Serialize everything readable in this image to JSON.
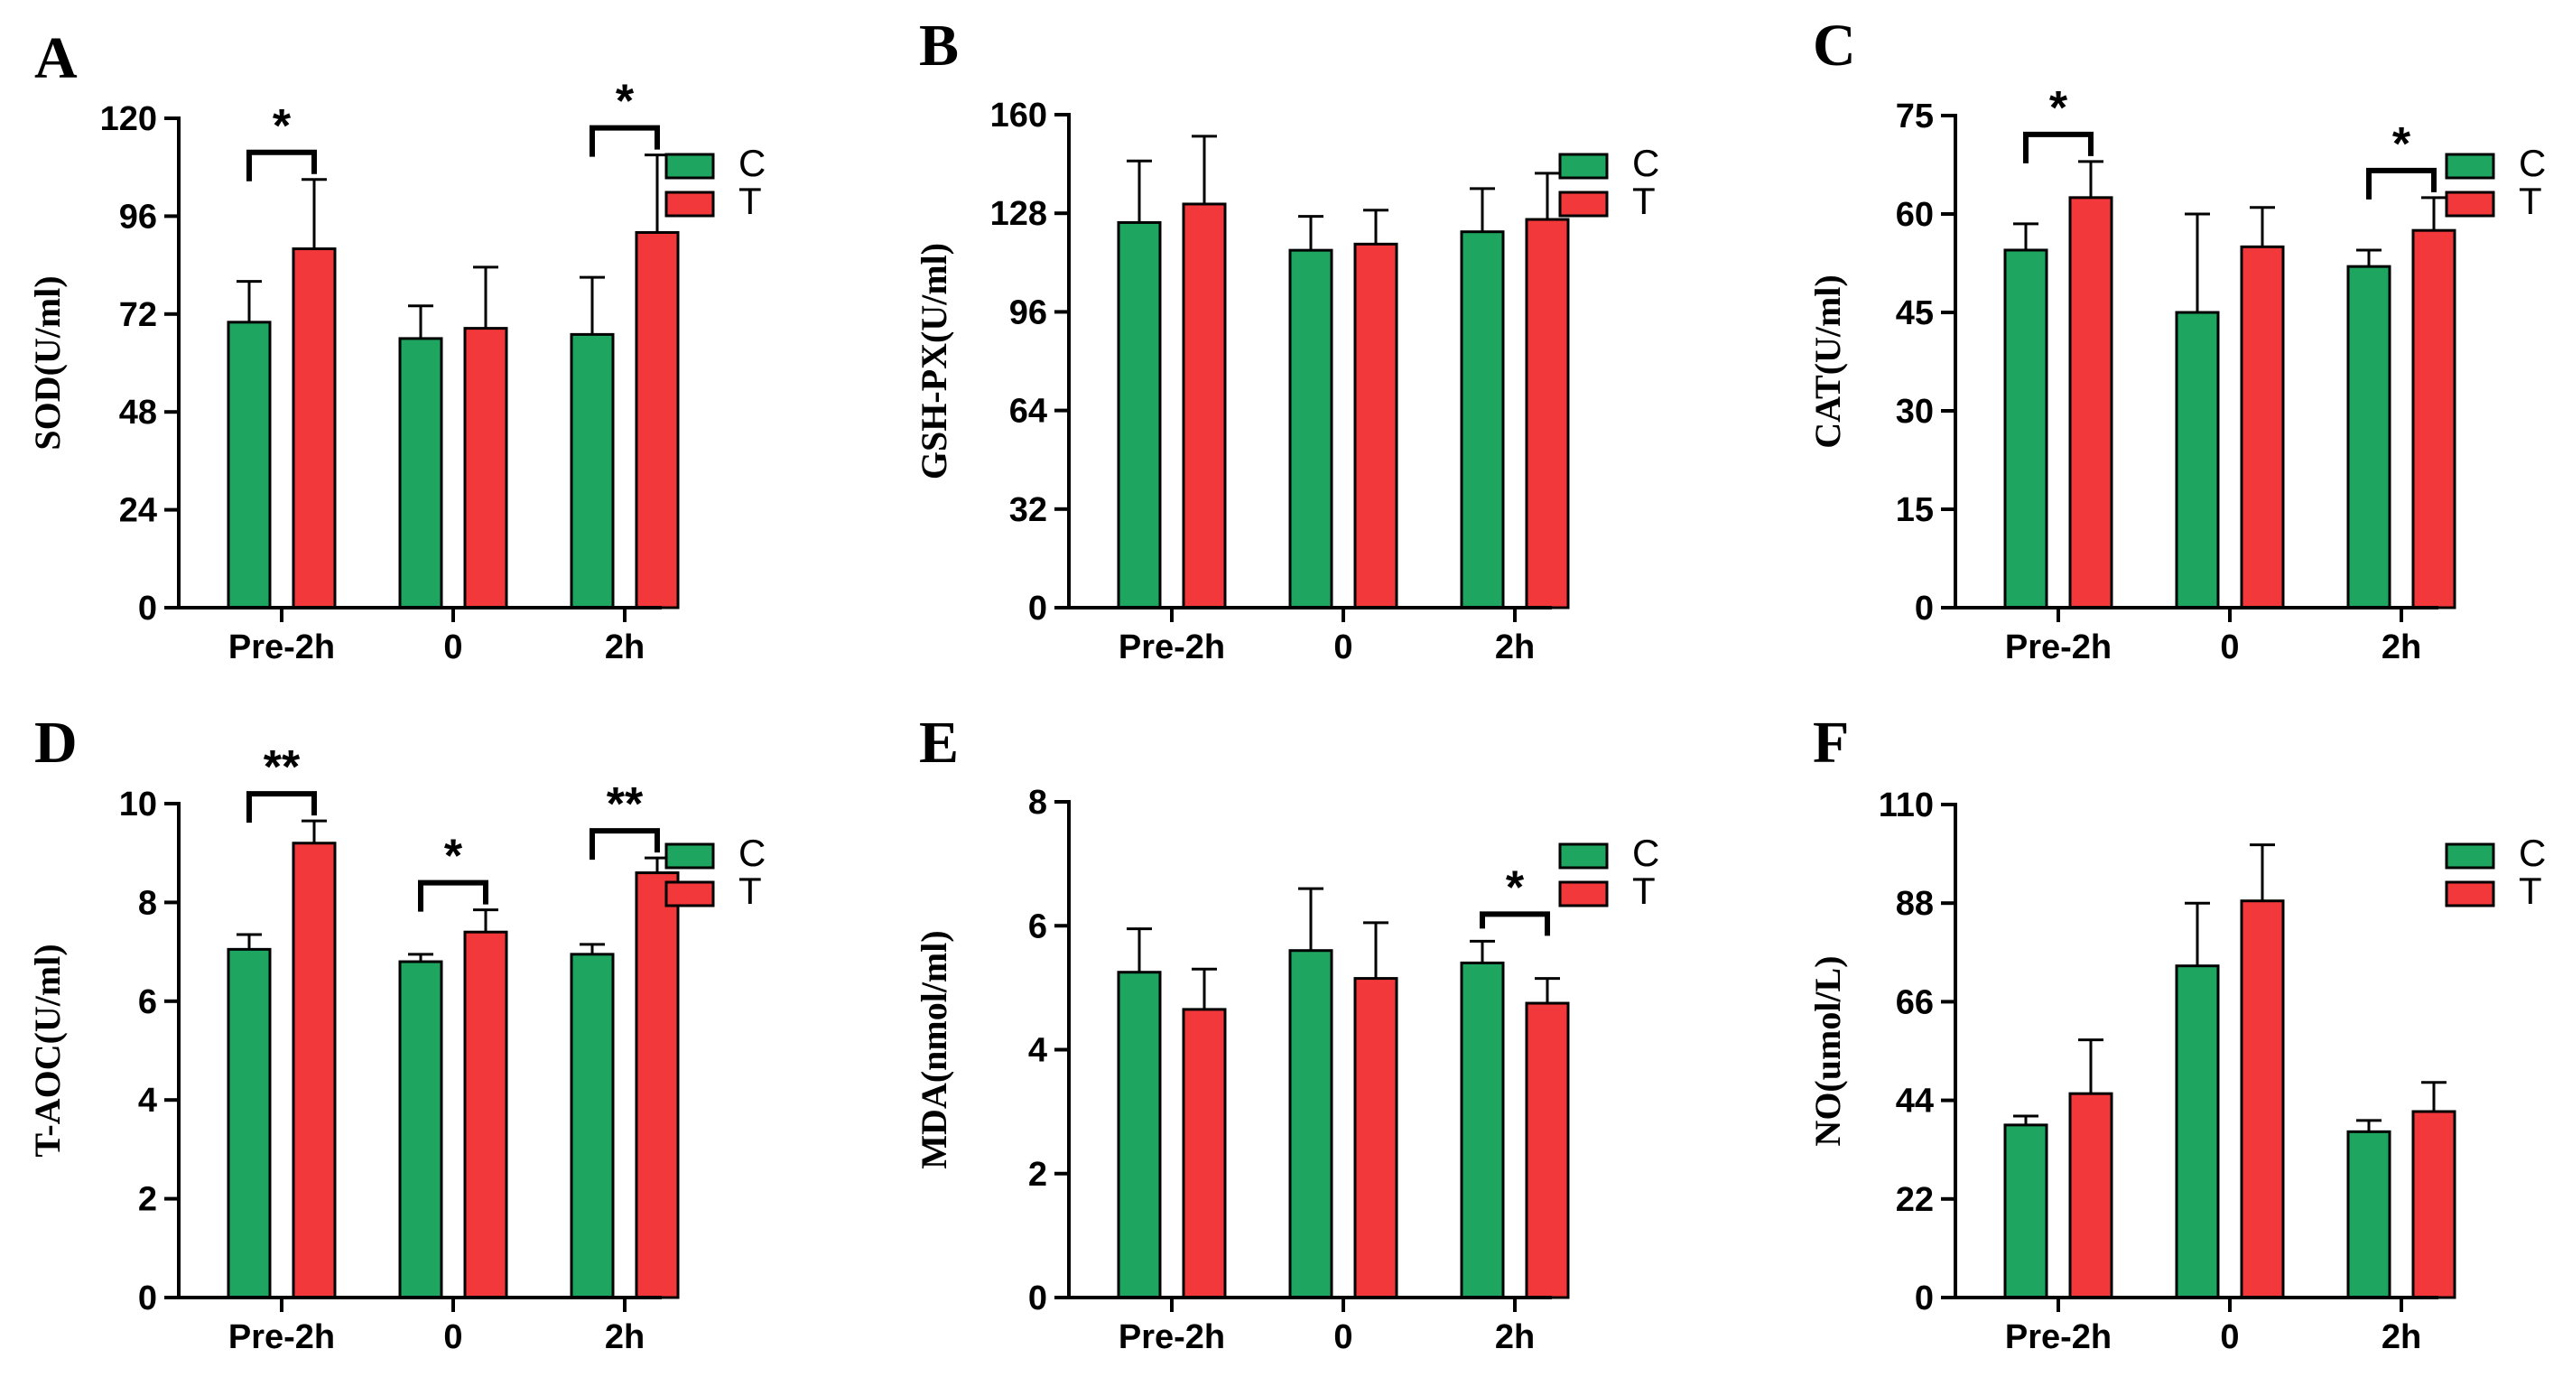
{
  "colors": {
    "C": "#1ea560",
    "T": "#f2383a",
    "axis": "#000000"
  },
  "chart_data": [
    {
      "type": "bar",
      "panel": "A",
      "ylabel": "SOD(U/ml)",
      "categories": [
        "Pre-2h",
        "0",
        "2h"
      ],
      "ylim": [
        0,
        120
      ],
      "yticks": [
        "0",
        "24",
        "48",
        "72",
        "96",
        "120"
      ],
      "legend": [
        "C",
        "T"
      ],
      "legend_position": "top-right",
      "series": [
        {
          "name": "C",
          "values": [
            70,
            66,
            67
          ],
          "errors": [
            10,
            8,
            14
          ]
        },
        {
          "name": "T",
          "values": [
            88,
            68.5,
            92
          ],
          "errors": [
            17,
            15,
            19
          ]
        }
      ],
      "significance": [
        {
          "category": "Pre-2h",
          "label": "*"
        },
        {
          "category": "2h",
          "label": "*"
        }
      ]
    },
    {
      "type": "bar",
      "panel": "B",
      "ylabel": "GSH-PX(U/ml)",
      "categories": [
        "Pre-2h",
        "0",
        "2h"
      ],
      "ylim": [
        0,
        160
      ],
      "yticks": [
        "0",
        "32",
        "64",
        "96",
        "128",
        "160"
      ],
      "legend": [
        "C",
        "T"
      ],
      "legend_position": "top-right",
      "series": [
        {
          "name": "C",
          "values": [
            125,
            116,
            122
          ],
          "errors": [
            20,
            11,
            14
          ]
        },
        {
          "name": "T",
          "values": [
            131,
            118,
            126
          ],
          "errors": [
            22,
            11,
            15
          ]
        }
      ],
      "significance": []
    },
    {
      "type": "bar",
      "panel": "C",
      "ylabel": "CAT(U/ml)",
      "categories": [
        "Pre-2h",
        "0",
        "2h"
      ],
      "ylim": [
        0,
        75
      ],
      "yticks": [
        "0",
        "15",
        "30",
        "45",
        "60",
        "75"
      ],
      "legend": [
        "C",
        "T"
      ],
      "legend_position": "top-right",
      "series": [
        {
          "name": "C",
          "values": [
            54.5,
            45,
            52
          ],
          "errors": [
            4,
            15,
            2.5
          ]
        },
        {
          "name": "T",
          "values": [
            62.5,
            55,
            57.5
          ],
          "errors": [
            5.5,
            6,
            5
          ]
        }
      ],
      "significance": [
        {
          "category": "Pre-2h",
          "label": "*"
        },
        {
          "category": "2h",
          "label": "*"
        }
      ]
    },
    {
      "type": "bar",
      "panel": "D",
      "ylabel": "T-AOC(U/ml)",
      "categories": [
        "Pre-2h",
        "0",
        "2h"
      ],
      "ylim": [
        0,
        10
      ],
      "yticks": [
        "0",
        "2",
        "4",
        "6",
        "8",
        "10"
      ],
      "legend": [
        "C",
        "T"
      ],
      "legend_position": "top-right",
      "series": [
        {
          "name": "C",
          "values": [
            7.05,
            6.8,
            6.95
          ],
          "errors": [
            0.3,
            0.15,
            0.2
          ]
        },
        {
          "name": "T",
          "values": [
            9.2,
            7.4,
            8.6
          ],
          "errors": [
            0.45,
            0.45,
            0.3
          ]
        }
      ],
      "significance": [
        {
          "category": "Pre-2h",
          "label": "**"
        },
        {
          "category": "0",
          "label": "*"
        },
        {
          "category": "2h",
          "label": "**"
        }
      ]
    },
    {
      "type": "bar",
      "panel": "E",
      "ylabel": "MDA(nmol/ml)",
      "categories": [
        "Pre-2h",
        "0",
        "2h"
      ],
      "ylim": [
        0,
        8
      ],
      "yticks": [
        "0",
        "2",
        "4",
        "6",
        "8"
      ],
      "legend": [
        "C",
        "T"
      ],
      "legend_position": "top-right",
      "series": [
        {
          "name": "C",
          "values": [
            5.25,
            5.6,
            5.4
          ],
          "errors": [
            0.7,
            1.0,
            0.35
          ]
        },
        {
          "name": "T",
          "values": [
            4.65,
            5.15,
            4.75
          ],
          "errors": [
            0.65,
            0.9,
            0.4
          ]
        }
      ],
      "significance": [
        {
          "category": "2h",
          "label": "*"
        }
      ]
    },
    {
      "type": "bar",
      "panel": "F",
      "ylabel": "NO(umol/L)",
      "categories": [
        "Pre-2h",
        "0",
        "2h"
      ],
      "ylim": [
        0,
        110
      ],
      "yticks": [
        "0",
        "22",
        "44",
        "66",
        "88",
        "110"
      ],
      "legend": [
        "C",
        "T"
      ],
      "legend_position": "top-right",
      "series": [
        {
          "name": "C",
          "values": [
            38.5,
            74,
            37
          ],
          "errors": [
            2,
            14,
            2.5
          ]
        },
        {
          "name": "T",
          "values": [
            45.5,
            88.5,
            41.5
          ],
          "errors": [
            12,
            12.5,
            6.5
          ]
        }
      ],
      "significance": []
    }
  ]
}
